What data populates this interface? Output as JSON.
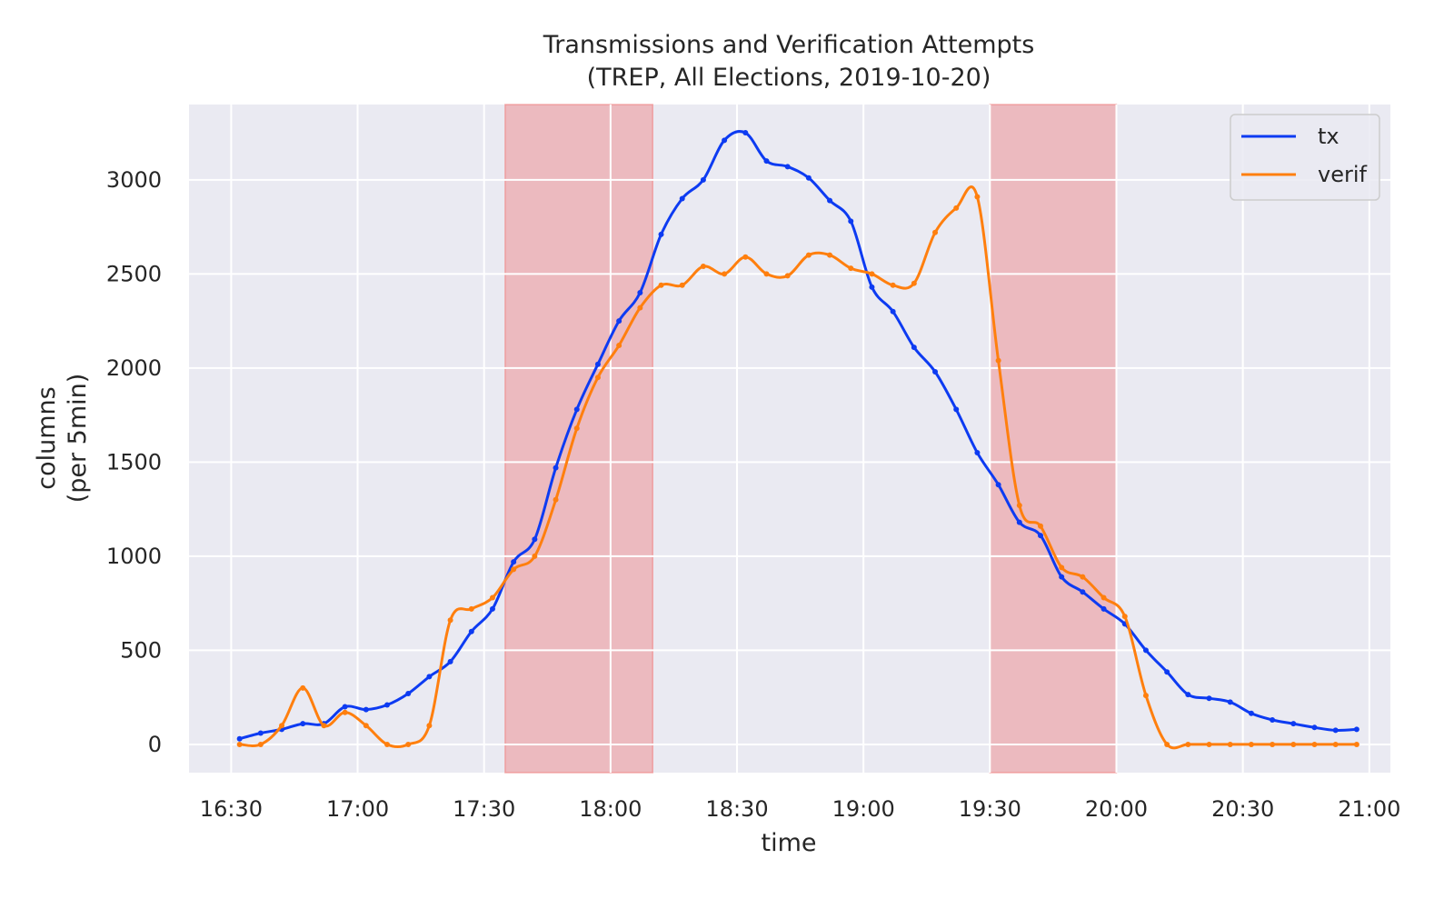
{
  "chart_data": {
    "type": "line",
    "title": "Transmissions and Verification Attempts",
    "subtitle": "(TREP, All Elections, 2019-10-20)",
    "xlabel": "time",
    "ylabel": "columns",
    "ylabel2": "(per 5min)",
    "xlim": [
      "16:20",
      "21:05"
    ],
    "ylim": [
      -150,
      3400
    ],
    "xticks": [
      "16:30",
      "17:00",
      "17:30",
      "18:00",
      "18:30",
      "19:00",
      "19:30",
      "20:00",
      "20:30",
      "21:00"
    ],
    "yticks": [
      0,
      500,
      1000,
      1500,
      2000,
      2500,
      3000
    ],
    "grid": true,
    "legend_position": "top-right",
    "shaded_intervals": [
      {
        "start": "17:35",
        "end": "18:10",
        "color": "#f08080"
      },
      {
        "start": "19:30",
        "end": "20:00",
        "color": "#f08080"
      }
    ],
    "x": [
      "16:32",
      "16:37",
      "16:42",
      "16:47",
      "16:52",
      "16:57",
      "17:02",
      "17:07",
      "17:12",
      "17:17",
      "17:22",
      "17:27",
      "17:32",
      "17:37",
      "17:42",
      "17:47",
      "17:52",
      "17:57",
      "18:02",
      "18:07",
      "18:12",
      "18:17",
      "18:22",
      "18:27",
      "18:32",
      "18:37",
      "18:42",
      "18:47",
      "18:52",
      "18:57",
      "19:02",
      "19:07",
      "19:12",
      "19:17",
      "19:22",
      "19:27",
      "19:32",
      "19:37",
      "19:42",
      "19:47",
      "19:52",
      "19:57",
      "20:02",
      "20:07",
      "20:12",
      "20:17",
      "20:22",
      "20:27",
      "20:32",
      "20:37",
      "20:42",
      "20:47",
      "20:52",
      "20:57"
    ],
    "series": [
      {
        "name": "tx",
        "color": "#0d3bf2",
        "values": [
          30,
          60,
          80,
          110,
          110,
          200,
          185,
          210,
          270,
          360,
          440,
          600,
          720,
          970,
          1090,
          1470,
          1780,
          2020,
          2250,
          2400,
          2710,
          2900,
          3000,
          3210,
          3250,
          3100,
          3070,
          3010,
          2890,
          2780,
          2430,
          2300,
          2110,
          1980,
          1780,
          1550,
          1380,
          1180,
          1110,
          890,
          810,
          720,
          640,
          500,
          385,
          265,
          245,
          225,
          165,
          130,
          110,
          90,
          75,
          80
        ]
      },
      {
        "name": "verif",
        "color": "#ff7f0e",
        "values": [
          0,
          0,
          100,
          300,
          100,
          170,
          100,
          0,
          0,
          100,
          660,
          720,
          780,
          930,
          1000,
          1300,
          1680,
          1950,
          2120,
          2320,
          2440,
          2440,
          2540,
          2500,
          2590,
          2500,
          2490,
          2600,
          2600,
          2530,
          2500,
          2440,
          2450,
          2720,
          2850,
          2910,
          2040,
          1270,
          1160,
          940,
          890,
          780,
          680,
          260,
          0,
          0,
          0,
          0,
          0,
          0,
          0,
          0,
          0,
          0
        ]
      }
    ]
  }
}
